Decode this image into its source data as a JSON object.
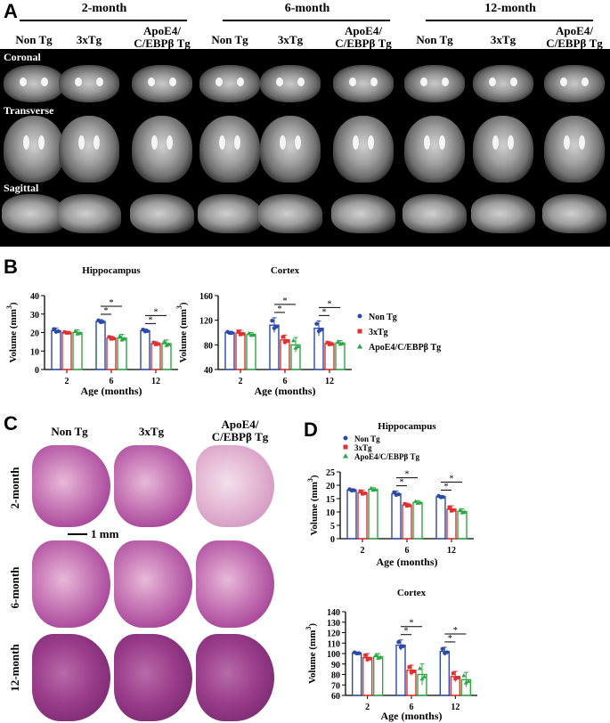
{
  "panels": {
    "a": "A",
    "b": "B",
    "c": "C",
    "d": "D"
  },
  "mri": {
    "ages": [
      "2-month",
      "6-month",
      "12-month"
    ],
    "groups": [
      "Non Tg",
      "3xTg",
      "ApoE4/\nC/EBPβ Tg"
    ],
    "rows": [
      "Coronal",
      "Transverse",
      "Sagittal"
    ]
  },
  "histology": {
    "groups": [
      "Non Tg",
      "3xTg",
      "ApoE4/\nC/EBPβ Tg"
    ],
    "ages": [
      "2-month",
      "6-month",
      "12-month"
    ],
    "scale": "1 mm"
  },
  "colors": {
    "nontg": "#2b4aa8",
    "x3tg": "#e03030",
    "apoe": "#2aa844"
  },
  "chart_data": [
    {
      "type": "bar",
      "panel": "B",
      "title": "Hippocampus",
      "categories": [
        "2",
        "6",
        "12"
      ],
      "xlabel": "Age (months)",
      "ylabel": "Volume (mm³)",
      "ylim": [
        0,
        40
      ],
      "yticks": [
        0,
        10,
        20,
        30,
        40
      ],
      "series": [
        {
          "name": "Non Tg",
          "values": [
            21,
            26,
            21
          ],
          "err": [
            1.5,
            1,
            1
          ]
        },
        {
          "name": "3xTg",
          "values": [
            20,
            17,
            14
          ],
          "err": [
            0.5,
            1,
            1
          ]
        },
        {
          "name": "ApoE4/C/EBPβ Tg",
          "values": [
            20,
            17,
            14
          ],
          "err": [
            1.5,
            2,
            2
          ]
        }
      ],
      "annotations": [
        "*",
        "*",
        "*",
        "*"
      ]
    },
    {
      "type": "bar",
      "panel": "B",
      "title": "Cortex",
      "categories": [
        "2",
        "6",
        "12"
      ],
      "xlabel": "Age (months)",
      "ylabel": "Volume (mm³)",
      "ylim": [
        40,
        160
      ],
      "yticks": [
        40,
        80,
        120,
        160
      ],
      "series": [
        {
          "name": "Non Tg",
          "values": [
            100,
            112,
            107
          ],
          "err": [
            2,
            12,
            12
          ]
        },
        {
          "name": "3xTg",
          "values": [
            99,
            88,
            82
          ],
          "err": [
            5,
            8,
            3
          ]
        },
        {
          "name": "ApoE4/C/EBPβ Tg",
          "values": [
            97,
            80,
            83
          ],
          "err": [
            3,
            12,
            4
          ]
        }
      ],
      "annotations": [
        "*",
        "*",
        "*",
        "*"
      ],
      "legend": [
        "Non Tg",
        "3xTg",
        "ApoE4/C/EBPβ Tg"
      ]
    },
    {
      "type": "bar",
      "panel": "D",
      "title": "Hippocampus",
      "categories": [
        "2",
        "6",
        "12"
      ],
      "xlabel": "Age (months)",
      "ylabel": "Volume (mm³)",
      "ylim": [
        0,
        25
      ],
      "yticks": [
        0,
        5,
        10,
        15,
        20,
        25
      ],
      "series": [
        {
          "name": "Non Tg",
          "values": [
            18.2,
            16.8,
            15.7
          ],
          "err": [
            0.5,
            1,
            0.5
          ]
        },
        {
          "name": "3xTg",
          "values": [
            17.2,
            12.6,
            11
          ],
          "err": [
            1,
            0.7,
            1.3
          ]
        },
        {
          "name": "ApoE4/C/EBPβ Tg",
          "values": [
            18.5,
            13.6,
            10.2
          ],
          "err": [
            0.6,
            0.6,
            1
          ]
        }
      ],
      "annotations": [
        "*",
        "*",
        "*",
        "*"
      ],
      "legend": [
        "Non Tg",
        "3xTg",
        "ApoE4/C/EBPβ Tg"
      ]
    },
    {
      "type": "bar",
      "panel": "D",
      "title": "Cortex",
      "categories": [
        "2",
        "6",
        "12"
      ],
      "xlabel": "Age (months)",
      "ylabel": "Volume (mm³)",
      "ylim": [
        60,
        140
      ],
      "yticks": [
        60,
        70,
        80,
        90,
        100,
        110,
        120,
        130,
        140
      ],
      "series": [
        {
          "name": "Non Tg",
          "values": [
            100.5,
            108,
            102
          ],
          "err": [
            1,
            5,
            4
          ]
        },
        {
          "name": "3xTg",
          "values": [
            96,
            84,
            78
          ],
          "err": [
            4,
            5,
            5
          ]
        },
        {
          "name": "ApoE4/C/EBPβ Tg",
          "values": [
            97,
            80,
            75
          ],
          "err": [
            3,
            10,
            7
          ]
        }
      ],
      "annotations": [
        "*",
        "*",
        "*",
        "*"
      ]
    }
  ]
}
